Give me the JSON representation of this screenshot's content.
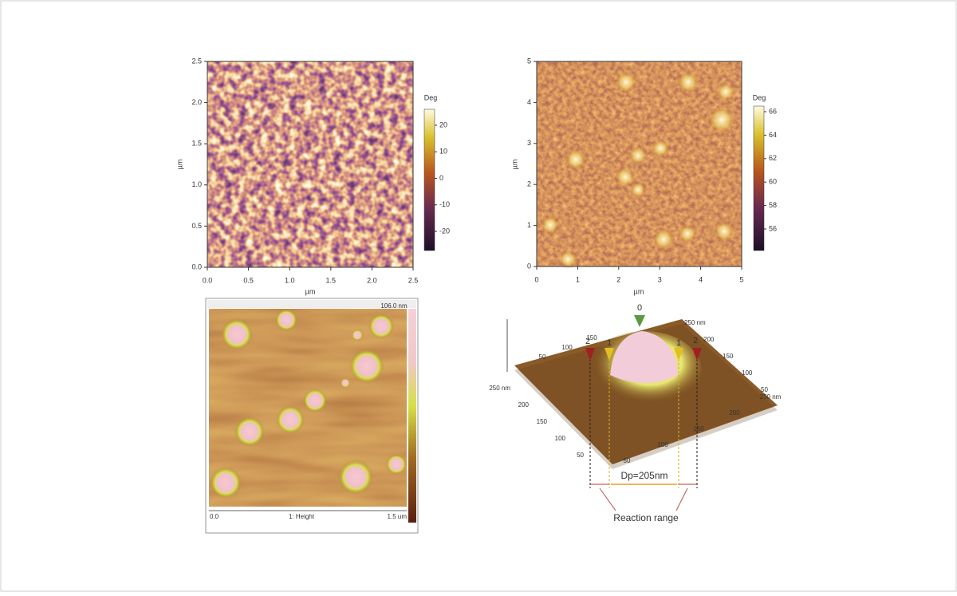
{
  "panel_a": {
    "x_axis_label": "µm",
    "y_axis_label": "µm",
    "xticks": [
      "0.0",
      "0.5",
      "1.0",
      "1.5",
      "2.0",
      "2.5"
    ],
    "yticks": [
      "0.0",
      "0.5",
      "1.0",
      "1.5",
      "2.0",
      "2.5"
    ],
    "colorbar_label": "Deg",
    "colorbar_ticks": [
      "20",
      "10",
      "0",
      "-10",
      "-20"
    ]
  },
  "panel_b": {
    "x_axis_label": "µm",
    "y_axis_label": "µm",
    "xticks": [
      "0",
      "1",
      "2",
      "3",
      "4",
      "5"
    ],
    "yticks": [
      "0",
      "1",
      "2",
      "3",
      "4",
      "5"
    ],
    "colorbar_label": "Deg",
    "colorbar_ticks": [
      "66",
      "64",
      "62",
      "60",
      "58",
      "56"
    ]
  },
  "panel_c": {
    "scale_max": "106.0 nm",
    "scale_start": "0.0",
    "channel": "1: Height",
    "scale_end": "1.5 um"
  },
  "panel_d": {
    "markers": [
      "0",
      "1",
      "1",
      "2",
      "2"
    ],
    "left_axis": [
      "250 nm",
      "200",
      "150",
      "100",
      "50"
    ],
    "front_axis": [
      "50",
      "100",
      "150",
      "200",
      "250 nm"
    ],
    "back_axis": [
      "150",
      "100",
      "50"
    ],
    "right_axis": [
      "250 nm",
      "200",
      "150",
      "100",
      "50"
    ],
    "diameter": "Dp=205nm",
    "caption": "Reaction range"
  }
}
